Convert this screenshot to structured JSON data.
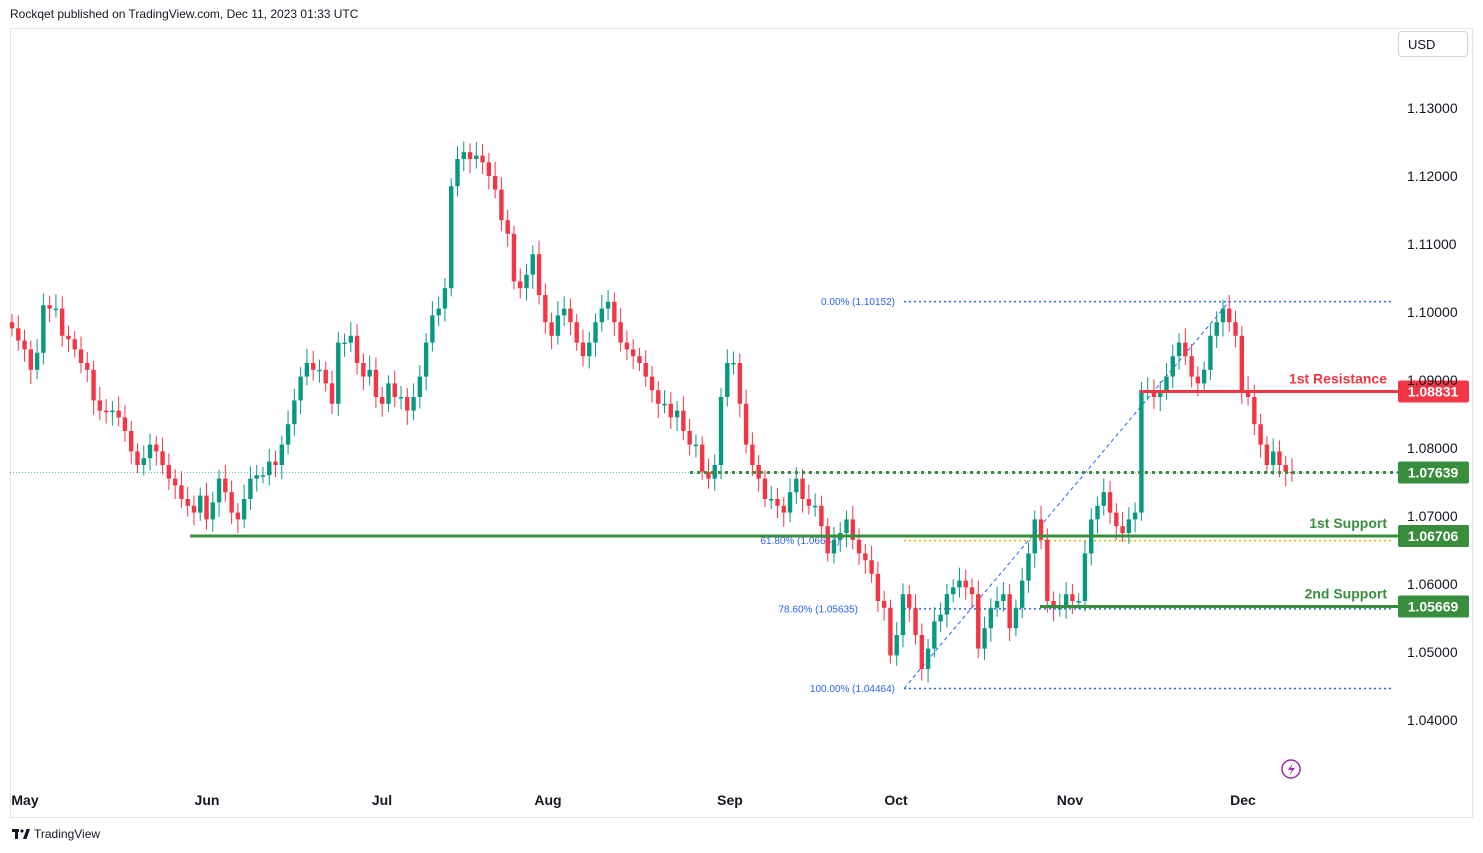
{
  "header": {
    "text": "Rockqet published on TradingView.com, Dec 11, 2023 01:33 UTC"
  },
  "currency_button": {
    "label": "USD"
  },
  "footer": {
    "brand": "TradingView"
  },
  "colors": {
    "up": "#089981",
    "down": "#f23645",
    "support": "#388e3c",
    "resistance": "#f23645",
    "fib": "#2962ff",
    "fib_mid": "#e5b300"
  },
  "chart_data": {
    "type": "candlestick",
    "y_axis": {
      "ticks": [
        1.13,
        1.12,
        1.11,
        1.1,
        1.09,
        1.08,
        1.07,
        1.06,
        1.05,
        1.04
      ],
      "tick_labels": [
        "1.13000",
        "1.12000",
        "1.11000",
        "1.10000",
        "1.09000",
        "1.08000",
        "1.07000",
        "1.06000",
        "1.05000",
        "1.04000"
      ]
    },
    "x_axis": {
      "labels": [
        "May",
        "Jun",
        "Jul",
        "Aug",
        "Sep",
        "Oct",
        "Nov",
        "Dec"
      ]
    },
    "current_price": 1.07639,
    "levels": [
      {
        "name": "1st Resistance",
        "price": 1.08831,
        "label": "1.08831",
        "kind": "resistance"
      },
      {
        "name": "1st Support",
        "price": 1.06706,
        "label": "1.06706",
        "kind": "support"
      },
      {
        "name": "2nd Support",
        "price": 1.05669,
        "label": "1.05669",
        "kind": "support"
      }
    ],
    "current_tag": "1.07639",
    "fibonacci": [
      {
        "label": "0.00% (1.10152)",
        "price": 1.10152
      },
      {
        "label": "61.80% (1.06637)",
        "price": 1.06637
      },
      {
        "label": "78.60% (1.05635)",
        "price": 1.05635
      },
      {
        "label": "100.00% (1.04464)",
        "price": 1.04464
      }
    ],
    "closes": [
      1.0976,
      1.0958,
      1.0945,
      1.0915,
      1.094,
      1.101,
      1.1005,
      1.1005,
      1.0965,
      1.096,
      1.0945,
      1.0925,
      1.0915,
      1.087,
      1.0855,
      1.0853,
      1.0855,
      1.0845,
      1.0825,
      1.0795,
      1.0775,
      1.0785,
      1.0805,
      1.0795,
      1.0775,
      1.0755,
      1.0745,
      1.0725,
      1.0715,
      1.0705,
      1.073,
      1.0695,
      1.072,
      1.0755,
      1.0735,
      1.0705,
      1.0695,
      1.0725,
      1.0755,
      1.076,
      1.076,
      1.078,
      1.0775,
      1.0805,
      1.0835,
      1.087,
      1.0905,
      1.0925,
      1.0915,
      1.0915,
      1.0895,
      1.0865,
      1.0955,
      1.0955,
      1.0965,
      1.0925,
      1.0905,
      1.0915,
      1.0875,
      1.0865,
      1.0895,
      1.0875,
      1.0875,
      1.0855,
      1.0875,
      1.0905,
      1.0955,
      1.0995,
      1.1005,
      1.1035,
      1.1185,
      1.1225,
      1.1235,
      1.1225,
      1.123,
      1.122,
      1.12,
      1.118,
      1.1135,
      1.1115,
      1.1045,
      1.1035,
      1.1055,
      1.1085,
      1.1025,
      1.0985,
      1.0965,
      1.0995,
      1.1005,
      1.0985,
      1.0955,
      1.0935,
      1.0955,
      1.0985,
      1.1005,
      1.1015,
      1.0985,
      1.0955,
      1.0945,
      1.0935,
      1.0925,
      1.0905,
      1.0885,
      1.0865,
      1.0865,
      1.0845,
      1.0855,
      1.0825,
      1.0805,
      1.0805,
      1.0765,
      1.0755,
      1.0775,
      1.0875,
      1.0925,
      1.0925,
      1.0865,
      1.0805,
      1.0775,
      1.0755,
      1.0725,
      1.0725,
      1.0715,
      1.0705,
      1.0735,
      1.0755,
      1.0725,
      1.0715,
      1.0715,
      1.0685,
      1.0645,
      1.0665,
      1.0675,
      1.0695,
      1.0665,
      1.0645,
      1.0635,
      1.0615,
      1.0575,
      1.0565,
      1.0495,
      1.0525,
      1.0585,
      1.0565,
      1.0525,
      1.0475,
      1.0505,
      1.0545,
      1.0555,
      1.0585,
      1.0595,
      1.0605,
      1.0595,
      1.0585,
      1.0505,
      1.0535,
      1.0565,
      1.0575,
      1.0585,
      1.0535,
      1.0565,
      1.0605,
      1.0645,
      1.0695,
      1.0665,
      1.0575,
      1.0565,
      1.0565,
      1.0585,
      1.0575,
      1.0575,
      1.0645,
      1.0695,
      1.0715,
      1.0735,
      1.0705,
      1.0685,
      1.0675,
      1.0695,
      1.0705,
      1.0885,
      1.0885,
      1.0875,
      1.0885,
      1.0905,
      1.0935,
      1.0955,
      1.0935,
      1.0905,
      1.0895,
      1.0915,
      1.0965,
      1.0985,
      1.1005,
      1.0985,
      1.0965,
      1.0885,
      1.0875,
      1.0835,
      1.0805,
      1.0775,
      1.0795,
      1.0775,
      1.0765,
      1.0764
    ]
  }
}
